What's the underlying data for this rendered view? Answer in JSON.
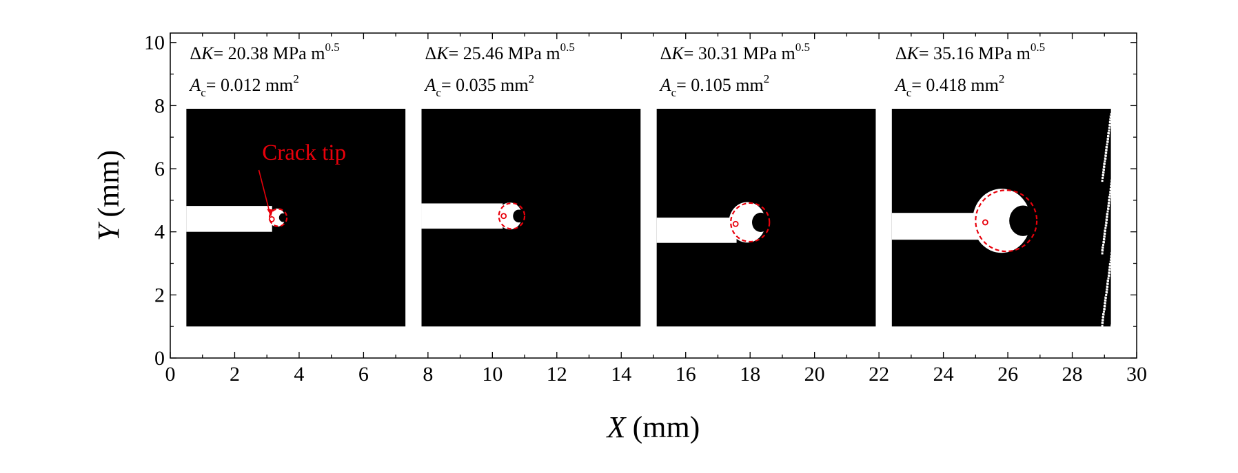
{
  "chart_data": {
    "type": "scatter",
    "xlabel": "X",
    "xlabel_unit": "(mm)",
    "ylabel": "Y",
    "ylabel_unit": "(mm)",
    "xlim": [
      0,
      30
    ],
    "ylim": [
      0,
      10.3
    ],
    "x_ticks": [
      "0",
      "2",
      "4",
      "6",
      "8",
      "10",
      "12",
      "14",
      "16",
      "18",
      "20",
      "22",
      "24",
      "26",
      "28",
      "30"
    ],
    "y_ticks": [
      "0",
      "2",
      "4",
      "6",
      "8",
      "10"
    ],
    "panels": [
      {
        "delta_k_prefix": "Δ",
        "delta_k_symbol": "K",
        "delta_k_value": "= 20.38 MPa m",
        "delta_k_exp": "0.5",
        "area_symbol": "A",
        "area_sub": "c",
        "area_value": "= 0.012 mm",
        "area_exp": "2",
        "image_x": [
          0.5,
          7.3
        ],
        "image_y": [
          1.0,
          7.9
        ],
        "crack_band_y": [
          4.0,
          4.82
        ],
        "crack_tip": {
          "x": 3.15,
          "y": 4.4
        },
        "zone_center": {
          "x": 3.35,
          "y": 4.45
        },
        "zone_radius": 0.27
      },
      {
        "delta_k_prefix": "Δ",
        "delta_k_symbol": "K",
        "delta_k_value": "= 25.46 MPa m",
        "delta_k_exp": "0.5",
        "area_symbol": "A",
        "area_sub": "c",
        "area_value": "= 0.035 mm",
        "area_exp": "2",
        "image_x": [
          7.8,
          14.6
        ],
        "image_y": [
          1.0,
          7.9
        ],
        "crack_band_y": [
          4.1,
          4.9
        ],
        "crack_tip": {
          "x": 10.35,
          "y": 4.5
        },
        "zone_center": {
          "x": 10.6,
          "y": 4.5
        },
        "zone_radius": 0.4
      },
      {
        "delta_k_prefix": "Δ",
        "delta_k_symbol": "K",
        "delta_k_value": "= 30.31 MPa m",
        "delta_k_exp": "0.5",
        "area_symbol": "A",
        "area_sub": "c",
        "area_value": "= 0.105 mm",
        "area_exp": "2",
        "image_x": [
          15.1,
          21.9
        ],
        "image_y": [
          1.0,
          7.9
        ],
        "crack_band_y": [
          3.65,
          4.45
        ],
        "crack_tip": {
          "x": 17.55,
          "y": 4.25
        },
        "zone_center": {
          "x": 18.0,
          "y": 4.3
        },
        "zone_radius": 0.6
      },
      {
        "delta_k_prefix": "Δ",
        "delta_k_symbol": "K",
        "delta_k_value": "= 35.16 MPa m",
        "delta_k_exp": "0.5",
        "area_symbol": "A",
        "area_sub": "c",
        "area_value": "= 0.418 mm",
        "area_exp": "2",
        "image_x": [
          22.4,
          29.2
        ],
        "image_y": [
          1.0,
          7.9
        ],
        "crack_band_y": [
          3.75,
          4.6
        ],
        "crack_tip": {
          "x": 25.3,
          "y": 4.3
        },
        "zone_center": {
          "x": 25.95,
          "y": 4.35
        },
        "zone_radius": 0.95
      }
    ],
    "annotation": {
      "text": "Crack tip",
      "x": 3.15,
      "y": 4.4
    },
    "colors": {
      "image_bg": "#000000",
      "crack": "#ffffff",
      "annotation": "#e8000b"
    }
  }
}
